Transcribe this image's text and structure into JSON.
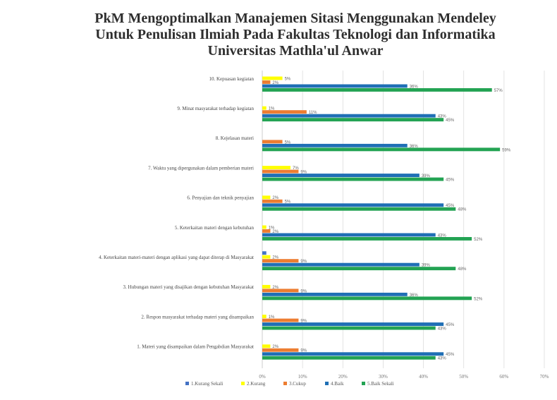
{
  "chart_data": {
    "type": "bar",
    "orientation": "horizontal",
    "title_lines": [
      "PkM Mengoptimalkan Manajemen Sitasi Menggunakan Mendeley",
      "Untuk Penulisan Ilmiah Pada Fakultas Teknologi dan Informatika",
      "Universitas Mathla'ul Anwar"
    ],
    "categories": [
      "10. Kepuasan kegiatan",
      "9. Minat masyarakat terhadap kegiatan",
      "8. Kejelasan materi",
      "7. Waktu yang dipergunakan dalam pemberian materi",
      "6. Penyajian dan teknik penyajian",
      "5. Keterkaitan materi dengan kebutuhan",
      "4. Keterkaitan materi-materi dengan aplikasi yang dapat diterap di Masyarakat",
      "3. Hubungan materi yang disajikan dengan kebutuhan Masyarakat",
      "2. Respon masyarakat terhadap materi yang disampaikan",
      "1. Materi yang disampaikan dalam Pengabdian Masyarakat"
    ],
    "series": [
      {
        "name": "1.Kurang Sekali",
        "color": "#4472c4",
        "values": [
          0,
          0,
          0,
          0,
          0,
          0,
          1,
          0,
          0,
          0
        ],
        "labels": [
          "",
          "",
          "",
          "",
          "",
          "",
          "",
          "",
          "",
          ""
        ]
      },
      {
        "name": "2.Kurang",
        "color": "#ffff00",
        "values": [
          5,
          1,
          0,
          7,
          2,
          1,
          2,
          2,
          1,
          2
        ],
        "labels": [
          "5%",
          "1%",
          "",
          "7%",
          "2%",
          "1%",
          "2%",
          "2%",
          "1%",
          "2%"
        ]
      },
      {
        "name": "3.Cukup",
        "color": "#ed7d31",
        "values": [
          2,
          11,
          5,
          9,
          5,
          2,
          9,
          9,
          9,
          9
        ],
        "labels": [
          "2%",
          "11%",
          "5%",
          "9%",
          "5%",
          "2%",
          "9%",
          "9%",
          "9%",
          "9%"
        ]
      },
      {
        "name": "4.Baik",
        "color": "#1f6fb5",
        "values": [
          36,
          43,
          36,
          39,
          45,
          43,
          39,
          36,
          45,
          45
        ],
        "labels": [
          "36%",
          "43%",
          "36%",
          "39%",
          "45%",
          "43%",
          "39%",
          "36%",
          "45%",
          "45%"
        ]
      },
      {
        "name": "5.Baik Sekali",
        "color": "#23a353",
        "values": [
          57,
          45,
          59,
          45,
          48,
          52,
          48,
          52,
          43,
          43
        ],
        "labels": [
          "57%",
          "45%",
          "59%",
          "45%",
          "48%",
          "52%",
          "48%",
          "52%",
          "43%",
          "43%"
        ]
      }
    ],
    "xticks": [
      "0%",
      "10%",
      "20%",
      "30%",
      "40%",
      "50%",
      "60%",
      "70%"
    ],
    "xlim": [
      0,
      70
    ],
    "grid": true,
    "legend_position": "bottom"
  }
}
